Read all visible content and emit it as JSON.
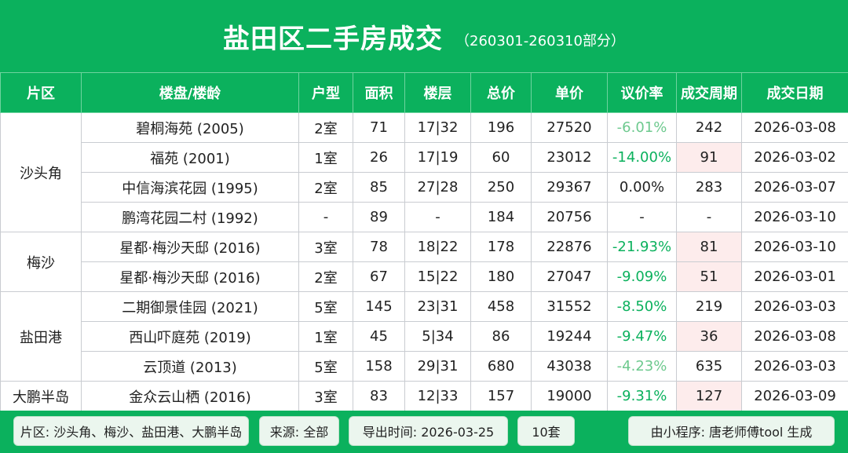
{
  "header": {
    "title": "盐田区二手房成交",
    "subtitle": "（260301-260310部分）"
  },
  "colors": {
    "green": "#0bb15d",
    "rate_strong": "#0bb15d",
    "rate_light": "#6dc98e",
    "highlight_bg": "#fdecec"
  },
  "columns": [
    "片区",
    "楼盘/楼龄",
    "户型",
    "面积",
    "楼层",
    "总价",
    "单价",
    "议价率",
    "成交周期",
    "成交日期"
  ],
  "districts": {
    "d0": "沙头角",
    "d1": "梅沙",
    "d2": "盐田港",
    "d3": "大鹏半岛"
  },
  "rows": [
    {
      "name": "碧桐海苑 (2005)",
      "layout": "2室",
      "area": "71",
      "floor": "17|32",
      "total": "196",
      "unit": "27520",
      "rate": "-6.01%",
      "rate_tone": "light",
      "cycle": "242",
      "date": "2026-03-08",
      "highlight": false
    },
    {
      "name": "福苑 (2001)",
      "layout": "1室",
      "area": "26",
      "floor": "17|19",
      "total": "60",
      "unit": "23012",
      "rate": "-14.00%",
      "rate_tone": "strong",
      "cycle": "91",
      "date": "2026-03-02",
      "highlight": true
    },
    {
      "name": "中信海滨花园 (1995)",
      "layout": "2室",
      "area": "85",
      "floor": "27|28",
      "total": "250",
      "unit": "29367",
      "rate": "0.00%",
      "rate_tone": "neutral",
      "cycle": "283",
      "date": "2026-03-07",
      "highlight": false
    },
    {
      "name": "鹏湾花园二村 (1992)",
      "layout": "-",
      "area": "89",
      "floor": "-",
      "total": "184",
      "unit": "20756",
      "rate": "-",
      "rate_tone": "neutral",
      "cycle": "-",
      "date": "2026-03-10",
      "highlight": false
    },
    {
      "name": "星都·梅沙天邸 (2016)",
      "layout": "3室",
      "area": "78",
      "floor": "18|22",
      "total": "178",
      "unit": "22876",
      "rate": "-21.93%",
      "rate_tone": "strong",
      "cycle": "81",
      "date": "2026-03-10",
      "highlight": true
    },
    {
      "name": "星都·梅沙天邸 (2016)",
      "layout": "2室",
      "area": "67",
      "floor": "15|22",
      "total": "180",
      "unit": "27047",
      "rate": "-9.09%",
      "rate_tone": "strong",
      "cycle": "51",
      "date": "2026-03-01",
      "highlight": true
    },
    {
      "name": "二期御景佳园 (2021)",
      "layout": "5室",
      "area": "145",
      "floor": "23|31",
      "total": "458",
      "unit": "31552",
      "rate": "-8.50%",
      "rate_tone": "strong",
      "cycle": "219",
      "date": "2026-03-03",
      "highlight": false
    },
    {
      "name": "西山吓庭苑 (2019)",
      "layout": "1室",
      "area": "45",
      "floor": "5|34",
      "total": "86",
      "unit": "19244",
      "rate": "-9.47%",
      "rate_tone": "strong",
      "cycle": "36",
      "date": "2026-03-08",
      "highlight": true
    },
    {
      "name": "云顶道 (2013)",
      "layout": "5室",
      "area": "158",
      "floor": "29|31",
      "total": "680",
      "unit": "43038",
      "rate": "-4.23%",
      "rate_tone": "light",
      "cycle": "635",
      "date": "2026-03-03",
      "highlight": false
    },
    {
      "name": "金众云山栖 (2016)",
      "layout": "3室",
      "area": "83",
      "floor": "12|33",
      "total": "157",
      "unit": "19000",
      "rate": "-9.31%",
      "rate_tone": "strong",
      "cycle": "127",
      "date": "2026-03-09",
      "highlight": true
    }
  ],
  "footer": {
    "districts_label": "片区: 沙头角、梅沙、盐田港、大鹏半岛",
    "source_label": "来源: 全部",
    "export_label": "导出时间: 2026-03-25",
    "count_label": "10套",
    "generator_label": "由小程序: 唐老师傅tool 生成"
  }
}
